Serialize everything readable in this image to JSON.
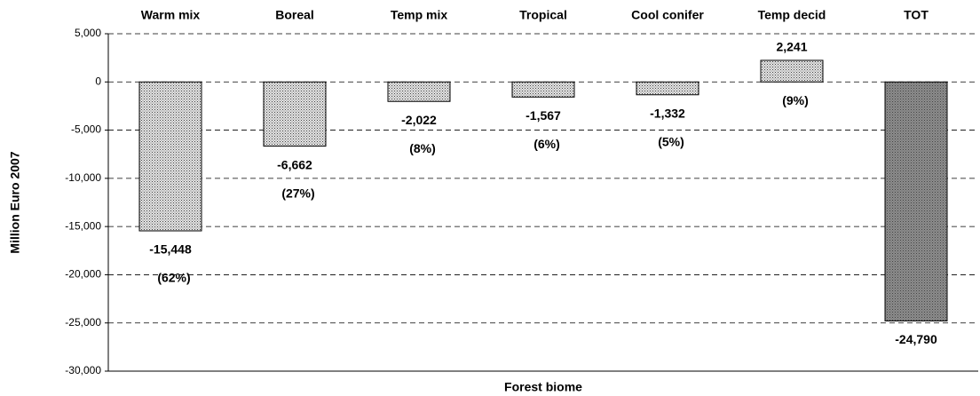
{
  "chart_data": {
    "type": "bar",
    "x_label": "Forest biome",
    "y_label": "Million Euro 2007",
    "categories": [
      "Warm mix",
      "Boreal",
      "Temp mix",
      "Tropical",
      "Cool conifer",
      "Temp decid",
      "TOT"
    ],
    "values": [
      -15448,
      -6662,
      -2022,
      -1567,
      -1332,
      2241,
      -24790
    ],
    "value_labels": [
      "-15,448",
      "-6,662",
      "-2,022",
      "-1,567",
      "-1,332",
      "2,241",
      "-24,790"
    ],
    "share_labels": [
      "(62%)",
      "(27%)",
      "(8%)",
      "(6%)",
      "(5%)",
      "(9%)",
      null
    ],
    "colors": [
      "#e4e4e4",
      "#e4e4e4",
      "#e4e4e4",
      "#e4e4e4",
      "#e4e4e4",
      "#e4e4e4",
      "#8c8c8c"
    ],
    "ylim": [
      -30000,
      5000
    ],
    "yticks": [
      {
        "value": -30000,
        "label": "-30,000"
      },
      {
        "value": -25000,
        "label": "-25,000"
      },
      {
        "value": -20000,
        "label": "-20,000"
      },
      {
        "value": -15000,
        "label": "-15,000"
      },
      {
        "value": -10000,
        "label": "-10,000"
      },
      {
        "value": -5000,
        "label": "-5,000"
      },
      0,
      {
        "value": 5000,
        "label": "5,000"
      }
    ],
    "grid": true
  }
}
